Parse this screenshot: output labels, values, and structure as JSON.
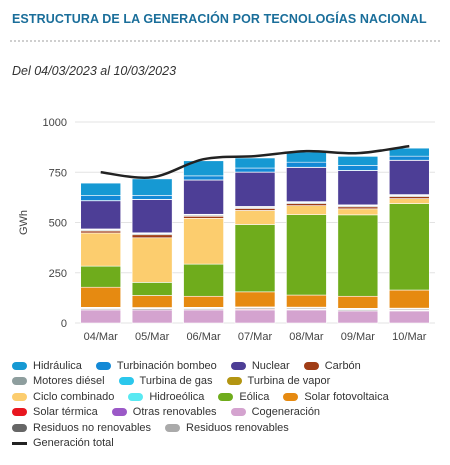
{
  "header": {
    "title": "ESTRUCTURA DE LA GENERACIÓN POR TECNOLOGÍAS NACIONAL",
    "subtitle": "Del 04/03/2023 al 10/03/2023"
  },
  "chart_data": {
    "type": "bar",
    "stacked": true,
    "categories": [
      "04/Mar",
      "05/Mar",
      "06/Mar",
      "07/Mar",
      "08/Mar",
      "09/Mar",
      "10/Mar"
    ],
    "ylabel": "GWh",
    "ylim": [
      0,
      1000
    ],
    "yticks": [
      0,
      250,
      500,
      750,
      1000
    ],
    "legend_position": "bottom",
    "series": [
      {
        "name": "Cogeneración",
        "color": "#d4a3cf",
        "values": [
          65,
          65,
          65,
          65,
          65,
          60,
          60
        ]
      },
      {
        "name": "Solar térmica",
        "color": "#e8161f",
        "values": [
          2,
          1,
          2,
          4,
          3,
          2,
          3
        ]
      },
      {
        "name": "Residuos no renovables",
        "color": "#666666",
        "values": [
          5,
          5,
          5,
          5,
          5,
          5,
          5
        ]
      },
      {
        "name": "Residuos renovables",
        "color": "#aaaaaa",
        "values": [
          3,
          3,
          3,
          3,
          3,
          3,
          3
        ]
      },
      {
        "name": "Otras renovables",
        "color": "#9b59c7",
        "values": [
          3,
          3,
          3,
          3,
          3,
          3,
          3
        ]
      },
      {
        "name": "Solar fotovoltaica",
        "color": "#e68a11",
        "values": [
          100,
          60,
          55,
          75,
          60,
          60,
          90
        ]
      },
      {
        "name": "Eólica",
        "color": "#6fac1c",
        "values": [
          105,
          65,
          160,
          335,
          400,
          405,
          430
        ]
      },
      {
        "name": "Ciclo combinado",
        "color": "#fccd6e",
        "values": [
          165,
          222,
          228,
          70,
          45,
          30,
          25
        ]
      },
      {
        "name": "Carbón",
        "color": "#a03c15",
        "values": [
          10,
          15,
          10,
          10,
          10,
          10,
          10
        ]
      },
      {
        "name": "Motores diésel",
        "color": "#8e9e9e",
        "values": [
          5,
          5,
          5,
          5,
          5,
          5,
          5
        ]
      },
      {
        "name": "Turbina de gas",
        "color": "#2bc7ec",
        "values": [
          2,
          2,
          2,
          2,
          2,
          2,
          2
        ]
      },
      {
        "name": "Turbina de vapor",
        "color": "#b39512",
        "values": [
          3,
          3,
          3,
          3,
          3,
          3,
          3
        ]
      },
      {
        "name": "Nuclear",
        "color": "#4d3e96",
        "values": [
          140,
          165,
          170,
          170,
          170,
          170,
          170
        ]
      },
      {
        "name": "Hidroeólica",
        "color": "#59e9f2",
        "values": [
          1,
          1,
          1,
          1,
          1,
          1,
          1
        ]
      },
      {
        "name": "Turbinación bombeo",
        "color": "#1389d6",
        "values": [
          25,
          20,
          20,
          20,
          25,
          25,
          20
        ]
      },
      {
        "name": "Hidráulica",
        "color": "#1699d3",
        "values": [
          62,
          82,
          75,
          50,
          50,
          45,
          40
        ]
      }
    ],
    "line": {
      "name": "Generación total",
      "color": "#222222",
      "values": [
        750,
        725,
        815,
        830,
        855,
        845,
        880
      ]
    }
  },
  "legend": {
    "rows": [
      [
        {
          "label": "Hidráulica",
          "color": "#1699d3"
        },
        {
          "label": "Turbinación bombeo",
          "color": "#1389d6"
        },
        {
          "label": "Nuclear",
          "color": "#4d3e96"
        },
        {
          "label": "Carbón",
          "color": "#a03c15"
        }
      ],
      [
        {
          "label": "Motores diésel",
          "color": "#8e9e9e"
        },
        {
          "label": "Turbina de gas",
          "color": "#2bc7ec"
        },
        {
          "label": "Turbina de vapor",
          "color": "#b39512"
        }
      ],
      [
        {
          "label": "Ciclo combinado",
          "color": "#fccd6e"
        },
        {
          "label": "Hidroeólica",
          "color": "#59e9f2"
        },
        {
          "label": "Eólica",
          "color": "#6fac1c"
        },
        {
          "label": "Solar fotovoltaica",
          "color": "#e68a11"
        }
      ],
      [
        {
          "label": "Solar térmica",
          "color": "#e8161f"
        },
        {
          "label": "Otras renovables",
          "color": "#9b59c7"
        },
        {
          "label": "Cogeneración",
          "color": "#d4a3cf"
        }
      ],
      [
        {
          "label": "Residuos no renovables",
          "color": "#666666"
        },
        {
          "label": "Residuos renovables",
          "color": "#aaaaaa"
        }
      ],
      [
        {
          "label": "Generación total",
          "line": true
        }
      ]
    ]
  }
}
